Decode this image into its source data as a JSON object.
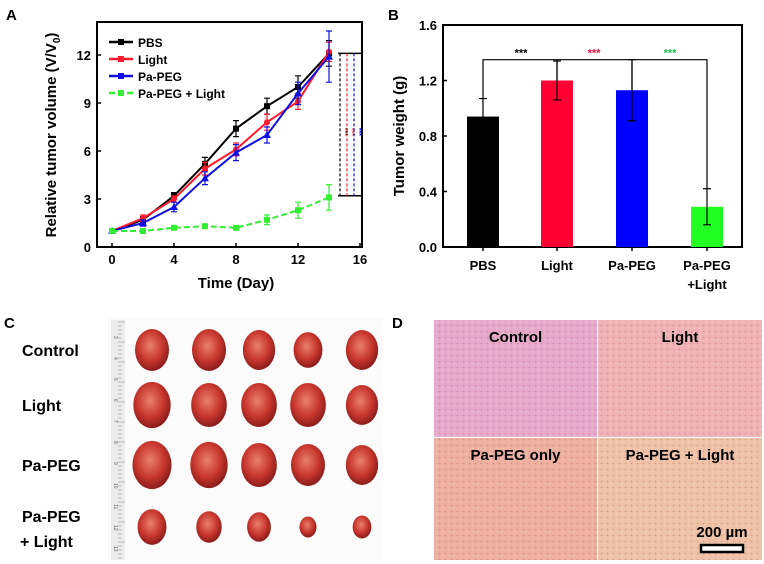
{
  "panel_labels": {
    "a": "A",
    "b": "B",
    "c": "C",
    "d": "D"
  },
  "chart_data": [
    {
      "type": "line",
      "panel": "A",
      "xlabel": "Time (Day)",
      "ylabel": "Relative tumor volume (V/V",
      "ylabel_sub": "0",
      "ylabel_end": ")",
      "xlim": [
        0,
        16
      ],
      "ylim": [
        0,
        14
      ],
      "xticks": [
        "0",
        "4",
        "8",
        "12",
        "16"
      ],
      "yticks": [
        "0",
        "3",
        "6",
        "9",
        "12"
      ],
      "legend_position": "top-left",
      "x": [
        0,
        2,
        4,
        6,
        8,
        10,
        12,
        14
      ],
      "series": [
        {
          "name": "PBS",
          "color": "#000000",
          "marker": "square",
          "dash": false,
          "values": [
            1,
            1.7,
            3.2,
            5.2,
            7.4,
            8.8,
            10.0,
            12.1
          ],
          "errors": [
            0.1,
            0.2,
            0.2,
            0.4,
            0.5,
            0.5,
            0.7,
            0.8
          ]
        },
        {
          "name": "Light",
          "color": "#ff1a2e",
          "marker": "circle",
          "dash": false,
          "values": [
            1,
            1.8,
            3.0,
            4.9,
            6.1,
            7.8,
            9.1,
            12.2
          ],
          "errors": [
            0.1,
            0.2,
            0.2,
            0.4,
            0.4,
            0.5,
            0.5,
            0.6
          ]
        },
        {
          "name": "Pa-PEG",
          "color": "#1010e0",
          "marker": "triangle",
          "dash": false,
          "values": [
            1,
            1.5,
            2.5,
            4.3,
            5.9,
            7.0,
            9.6,
            11.9
          ],
          "errors": [
            0.1,
            0.2,
            0.3,
            0.4,
            0.5,
            0.5,
            0.7,
            1.6
          ]
        },
        {
          "name": "Pa-PEG + Light",
          "color": "#33ee33",
          "marker": "square",
          "dash": true,
          "values": [
            1,
            1.0,
            1.2,
            1.3,
            1.2,
            1.7,
            2.3,
            3.1
          ],
          "errors": [
            0.1,
            0.1,
            0.1,
            0.1,
            0.1,
            0.3,
            0.5,
            0.8
          ]
        }
      ],
      "significance": {
        "label": "***",
        "colors": [
          "#000000",
          "#ff1a2e",
          "#1010e0"
        ],
        "from": 12.1,
        "to": 3.2
      }
    },
    {
      "type": "bar",
      "panel": "B",
      "ylabel": "Tumor weight (g)",
      "ylim": [
        0,
        1.6
      ],
      "yticks": [
        "0.0",
        "0.4",
        "0.8",
        "1.2",
        "1.6"
      ],
      "categories": [
        "PBS",
        "Light",
        "Pa-PEG",
        "Pa-PEG"
      ],
      "categories_line2": [
        "",
        "",
        "",
        "+Light"
      ],
      "values": [
        0.94,
        1.2,
        1.13,
        0.29
      ],
      "errors": [
        0.13,
        0.14,
        0.22,
        0.13
      ],
      "colors": [
        "#000000",
        "#ff0033",
        "#0000ff",
        "#22ff22"
      ],
      "significance": {
        "level": 1.35,
        "labels": [
          "***",
          "***",
          "***"
        ],
        "colors": [
          "#000000",
          "#dd1144",
          "#22bb55"
        ]
      }
    }
  ],
  "panel_c": {
    "rows": [
      {
        "label": "Control",
        "label2": "",
        "sizes": [
          1.0,
          1.0,
          0.95,
          0.85,
          0.95
        ]
      },
      {
        "label": "Light",
        "label2": "",
        "sizes": [
          1.1,
          1.05,
          1.05,
          1.05,
          0.95
        ]
      },
      {
        "label": "Pa-PEG",
        "label2": "",
        "sizes": [
          1.15,
          1.1,
          1.05,
          1.0,
          0.95
        ]
      },
      {
        "label": "Pa-PEG",
        "label2": "+ Light",
        "sizes": [
          0.85,
          0.75,
          0.7,
          0.5,
          0.55
        ]
      }
    ],
    "ruler_marks": [
      "3",
      "4",
      "5",
      "6",
      "7",
      "8",
      "9",
      "10",
      "11",
      "12",
      "13"
    ]
  },
  "panel_d": {
    "images": [
      {
        "label": "Control",
        "color": "#e7a9c9"
      },
      {
        "label": "Light",
        "color": "#f0b3b5"
      },
      {
        "label": "Pa-PEG only",
        "color": "#eeb09f"
      },
      {
        "label": "Pa-PEG + Light",
        "color": "#efc2a8"
      }
    ],
    "scale_bar": "200 µm"
  }
}
